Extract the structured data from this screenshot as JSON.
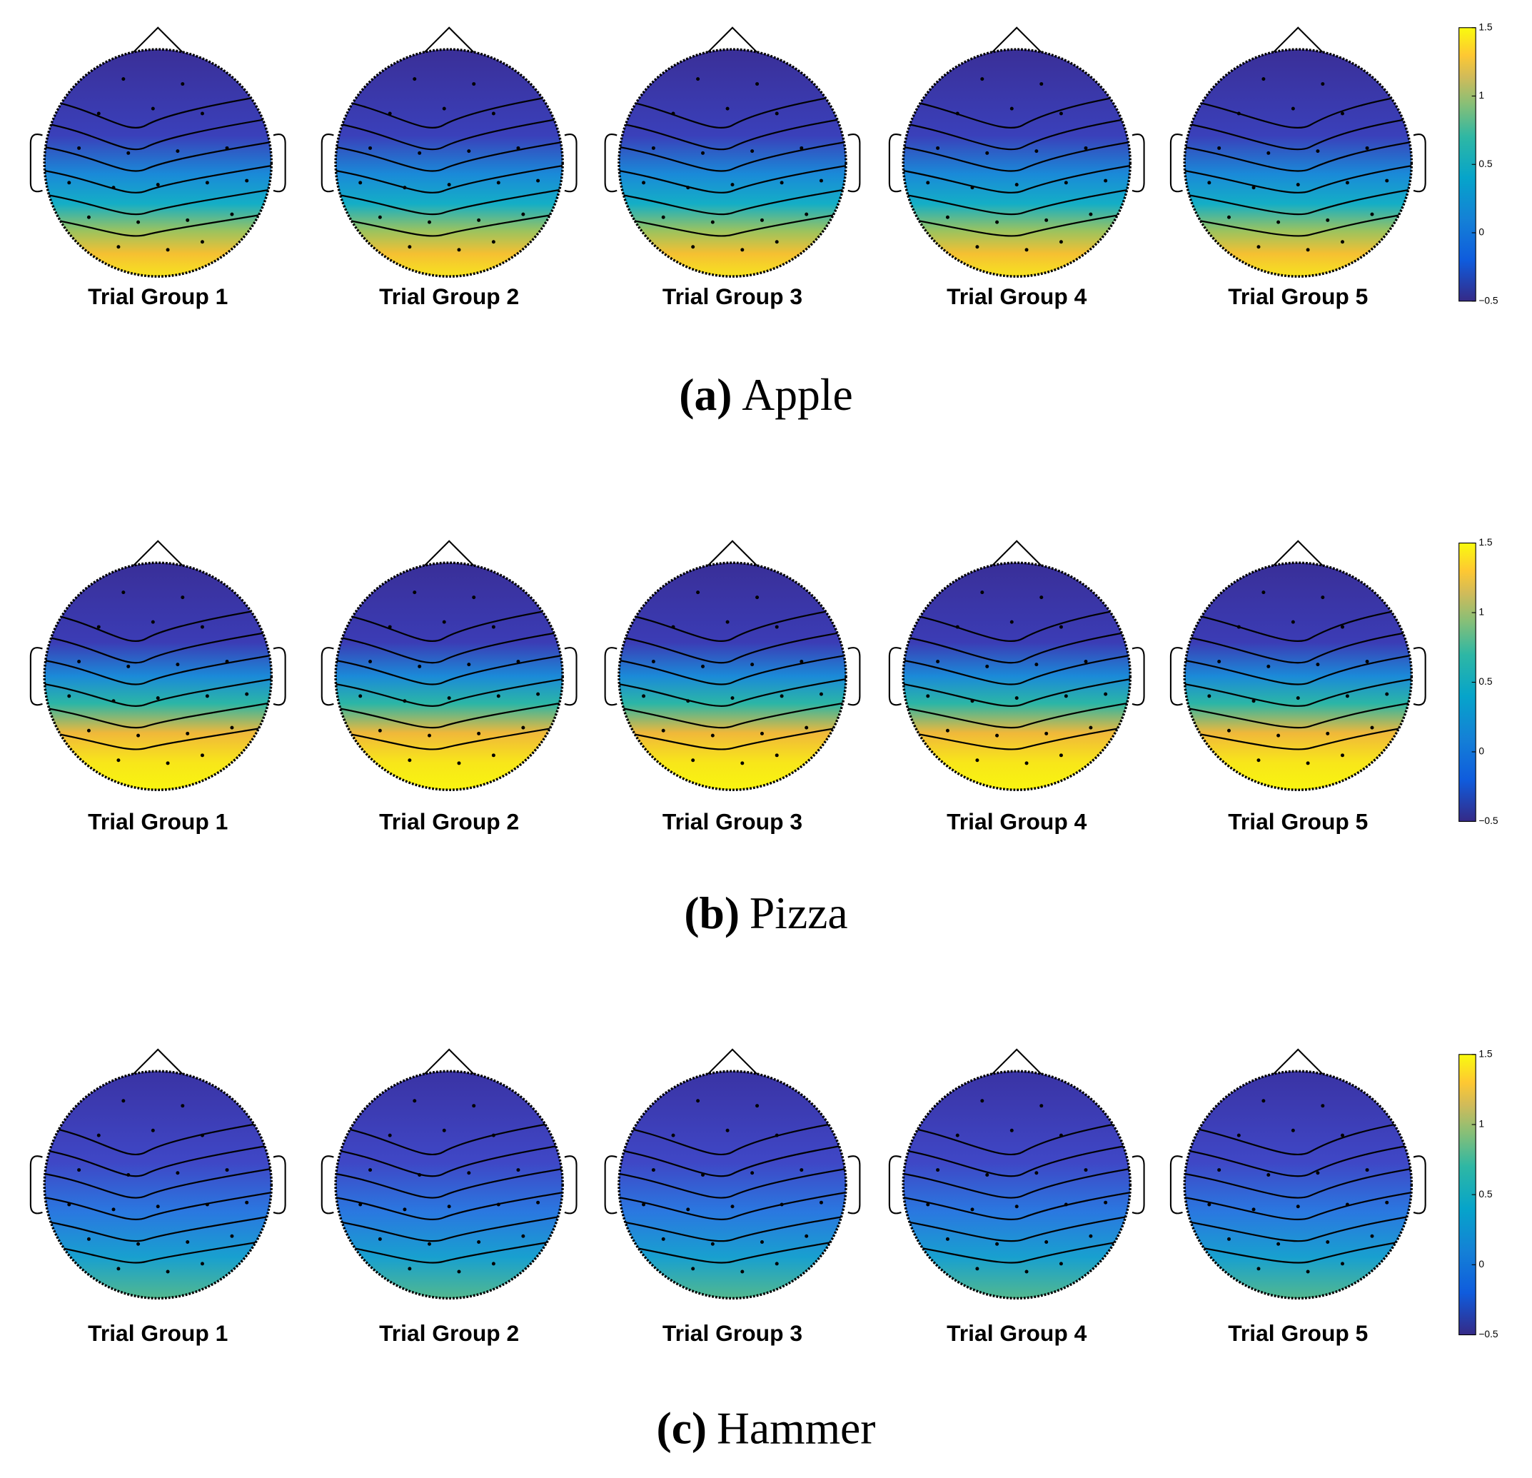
{
  "panels": [
    {
      "label": "(a)",
      "name": "Apple",
      "maps": [
        "Trial Group 1",
        "Trial Group 2",
        "Trial Group 3",
        "Trial Group 4",
        "Trial Group 5"
      ],
      "colorbar": {
        "lim": [
          -0.5,
          1.5
        ],
        "ticks": [
          1.5,
          1,
          0.5,
          0,
          {
            "value": -0.5,
            "label": "−0.5"
          }
        ]
      }
    },
    {
      "label": "(b)",
      "name": "Pizza",
      "maps": [
        "Trial Group 1",
        "Trial Group 2",
        "Trial Group 3",
        "Trial Group 4",
        "Trial Group 5"
      ],
      "colorbar": {
        "lim": [
          -0.5,
          1.5
        ],
        "ticks": [
          1.5,
          1,
          0.5,
          0,
          {
            "value": -0.5,
            "label": "−0.5"
          }
        ]
      }
    },
    {
      "label": "(c)",
      "name": "Hammer",
      "maps": [
        "Trial Group 1",
        "Trial Group 2",
        "Trial Group 3",
        "Trial Group 4",
        "Trial Group 5"
      ],
      "colorbar": {
        "lim": [
          -0.5,
          1.5
        ],
        "ticks": [
          1.5,
          1,
          0.5,
          0,
          {
            "value": -0.5,
            "label": "−0.5"
          }
        ]
      }
    }
  ]
}
